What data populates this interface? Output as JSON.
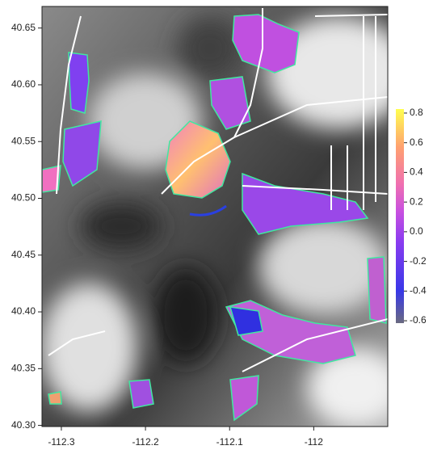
{
  "chart_data": {
    "type": "map",
    "xlim": [
      -112.323,
      -111.912
    ],
    "ylim": [
      40.299,
      40.669
    ],
    "xticks": [
      -112.3,
      -112.2,
      -112.1,
      -112.0
    ],
    "yticks": [
      {
        "value": 40.3,
        "label": "40.30"
      },
      {
        "value": 40.35,
        "label": "40.35"
      },
      {
        "value": 40.4,
        "label": "40.40"
      },
      {
        "value": 40.45,
        "label": "40.45"
      },
      {
        "value": 40.5,
        "label": "40.50"
      },
      {
        "value": 40.55,
        "label": "40.55"
      },
      {
        "value": 40.6,
        "label": "40.60"
      },
      {
        "value": 40.65,
        "label": "40.65"
      }
    ],
    "colorbar": {
      "lim": [
        -0.616,
        0.827
      ],
      "ticks": [
        -0.6,
        -0.4,
        -0.2,
        {
          "value": 0,
          "label": "0.0"
        },
        0.2,
        0.4,
        0.6,
        0.8
      ]
    }
  }
}
